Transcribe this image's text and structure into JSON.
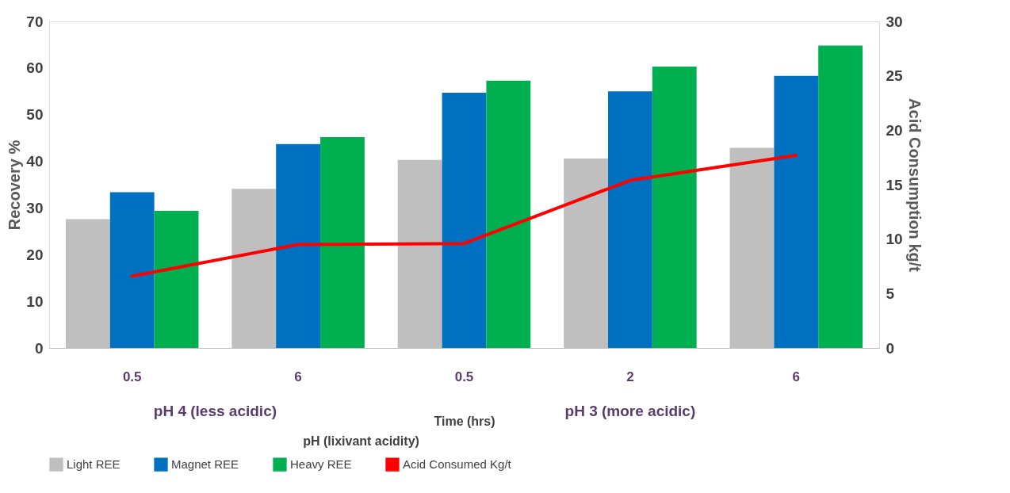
{
  "chart_data": {
    "type": "bar",
    "xlabel": "Time (hrs)",
    "ylabel": "Recovery %",
    "y2label": "Acid Consumption kg/t",
    "categories": [
      "0.5",
      "6",
      "0.5",
      "2",
      "6"
    ],
    "series": [
      {
        "name": "Light REE",
        "color": "#bfbfbf",
        "values": [
          27.6,
          34.1,
          40.3,
          40.6,
          42.9
        ]
      },
      {
        "name": "Magnet REE",
        "color": "#0070c0",
        "values": [
          33.4,
          43.7,
          54.7,
          55.0,
          58.3
        ]
      },
      {
        "name": "Heavy REE",
        "color": "#00b050",
        "values": [
          29.4,
          45.2,
          57.3,
          60.3,
          64.8
        ]
      },
      {
        "name": "Acid Consumed Kg/t",
        "color": "#ff0000",
        "type": "line",
        "axis": "y2",
        "values": [
          6.6,
          9.5,
          9.6,
          15.4,
          17.7
        ]
      }
    ],
    "ylim": [
      0,
      70
    ],
    "yticks": [
      0,
      10,
      20,
      30,
      40,
      50,
      60,
      70
    ],
    "y2lim": [
      0,
      30
    ],
    "y2ticks": [
      0,
      5,
      10,
      15,
      20,
      25,
      30
    ],
    "grid": false,
    "legend": "bottom",
    "annotations": [
      "pH 4 (less acidic)",
      "pH 3 (more acidic)",
      "pH (lixivant acidity)"
    ]
  }
}
